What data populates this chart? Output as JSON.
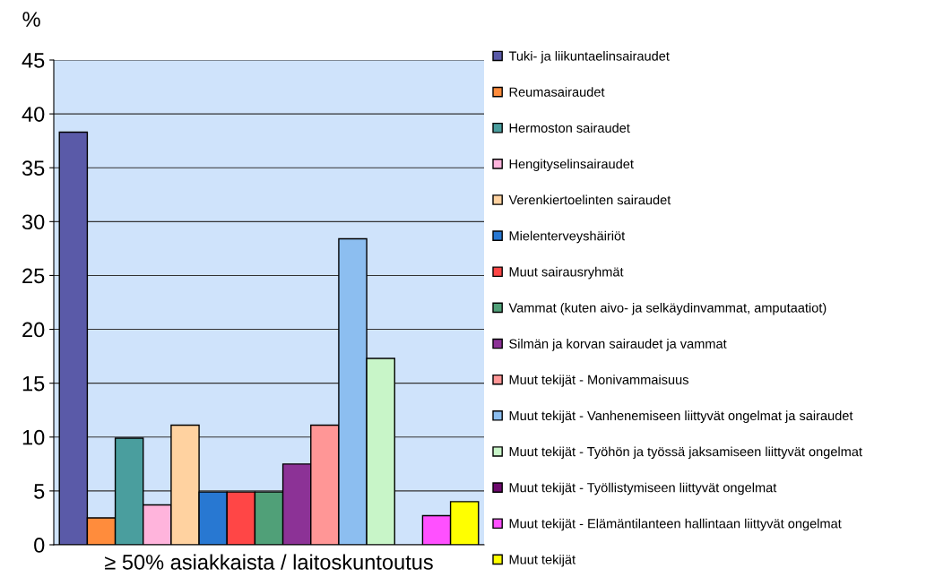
{
  "chart_data": {
    "type": "bar",
    "ylabel": "%",
    "xlabel": "≥ 50% asiakkaista / laitoskuntoutus",
    "categories": [
      null,
      null,
      null,
      null,
      null,
      null,
      null,
      null,
      null,
      null,
      null,
      null,
      null,
      null,
      null
    ],
    "series": [
      {
        "name": "Tuki- ja liikuntaelinsairaudet",
        "color": "#5a5aa8",
        "values": [
          38.3,
          null,
          null,
          null,
          null,
          null,
          null,
          null,
          null,
          null,
          null,
          null,
          null,
          null,
          null
        ]
      },
      {
        "name": "Reumasairaudet",
        "color": "#ff8c3c",
        "values": [
          null,
          2.5,
          null,
          null,
          null,
          null,
          null,
          null,
          null,
          null,
          null,
          null,
          null,
          null,
          null
        ]
      },
      {
        "name": "Hermoston sairaudet",
        "color": "#4a9e9e",
        "values": [
          null,
          null,
          9.9,
          null,
          null,
          null,
          null,
          null,
          null,
          null,
          null,
          null,
          null,
          null,
          null
        ]
      },
      {
        "name": "Hengityselinsairaudet",
        "color": "#ffb4dc",
        "values": [
          null,
          null,
          null,
          3.7,
          null,
          null,
          null,
          null,
          null,
          null,
          null,
          null,
          null,
          null,
          null
        ]
      },
      {
        "name": "Verenkiertoelinten sairaudet",
        "color": "#ffd2a0",
        "values": [
          null,
          null,
          null,
          null,
          11.1,
          null,
          null,
          null,
          null,
          null,
          null,
          null,
          null,
          null,
          null
        ]
      },
      {
        "name": "Mielenterveyshäiriöt",
        "color": "#2878d2",
        "values": [
          null,
          null,
          null,
          null,
          null,
          4.9,
          null,
          null,
          null,
          null,
          null,
          null,
          null,
          null,
          null
        ]
      },
      {
        "name": "Muut sairausryhmät",
        "color": "#ff4646",
        "values": [
          null,
          null,
          null,
          null,
          null,
          null,
          4.9,
          null,
          null,
          null,
          null,
          null,
          null,
          null,
          null
        ]
      },
      {
        "name": "Vammat (kuten aivo- ja selkäydinvammat, amputaatiot)",
        "color": "#50a078",
        "values": [
          null,
          null,
          null,
          null,
          null,
          null,
          null,
          4.9,
          null,
          null,
          null,
          null,
          null,
          null,
          null
        ]
      },
      {
        "name": "Silmän ja korvan sairaudet ja vammat",
        "color": "#8c3296",
        "values": [
          null,
          null,
          null,
          null,
          null,
          null,
          null,
          null,
          7.5,
          null,
          null,
          null,
          null,
          null,
          null
        ]
      },
      {
        "name": "Muut tekijät - Monivammaisuus",
        "color": "#ff9696",
        "values": [
          null,
          null,
          null,
          null,
          null,
          null,
          null,
          null,
          null,
          11.1,
          null,
          null,
          null,
          null,
          null
        ]
      },
      {
        "name": "Muut tekijät - Vanhenemiseen liittyvät ongelmat ja sairaudet",
        "color": "#8cbef0",
        "values": [
          null,
          null,
          null,
          null,
          null,
          null,
          null,
          null,
          null,
          null,
          28.4,
          null,
          null,
          null,
          null
        ]
      },
      {
        "name": "Muut tekijät - Työhön ja työssä jaksamiseen liittyvät ongelmat",
        "color": "#c8f5c8",
        "values": [
          null,
          null,
          null,
          null,
          null,
          null,
          null,
          null,
          null,
          null,
          null,
          17.3,
          null,
          null,
          null
        ]
      },
      {
        "name": "Muut tekijät - Työllistymiseen liittyvät ongelmat",
        "color": "#6e0a6e",
        "values": [
          null,
          null,
          null,
          null,
          null,
          null,
          null,
          null,
          null,
          null,
          null,
          null,
          null,
          null,
          null
        ]
      },
      {
        "name": "Muut tekijät - Elämäntilanteen hallintaan liittyvät ongelmat",
        "color": "#ff50ff",
        "values": [
          null,
          null,
          null,
          null,
          null,
          null,
          null,
          null,
          null,
          null,
          null,
          null,
          null,
          2.7,
          null
        ]
      },
      {
        "name": "Muut tekijät",
        "color": "#ffff00",
        "values": [
          null,
          null,
          null,
          null,
          null,
          null,
          null,
          null,
          null,
          null,
          null,
          null,
          null,
          null,
          4.0
        ]
      }
    ],
    "ylim": [
      0,
      45
    ],
    "yticks": [
      0,
      5,
      10,
      15,
      20,
      25,
      30,
      35,
      40,
      45
    ],
    "grid": "y",
    "legend": "right"
  }
}
